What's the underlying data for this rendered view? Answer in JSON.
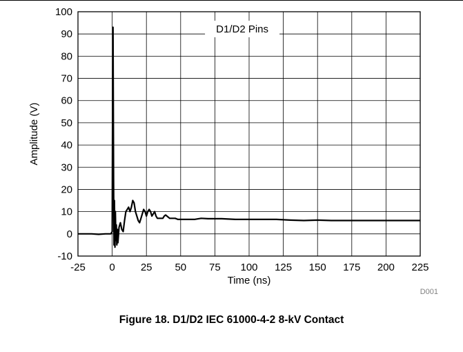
{
  "caption": "Figure 18. D1/D2 IEC 61000-4-2 8-kV Contact",
  "figure_code": "D001",
  "chart_data": {
    "type": "line",
    "title": "",
    "xlabel": "Time (ns)",
    "ylabel": "Amplitude (V)",
    "xlim": [
      -25,
      225
    ],
    "ylim": [
      -10,
      100
    ],
    "xticks": [
      -25,
      0,
      25,
      50,
      75,
      100,
      125,
      150,
      175,
      200,
      225
    ],
    "yticks": [
      -10,
      0,
      10,
      20,
      30,
      40,
      50,
      60,
      70,
      80,
      90,
      100
    ],
    "grid": true,
    "legend_position": "top-center",
    "series": [
      {
        "name": "D1/D2 Pins",
        "color": "#000000",
        "x": [
          -25,
          -20,
          -15,
          -10,
          -5,
          -1,
          0,
          0.3,
          0.6,
          1,
          1.3,
          1.6,
          2,
          2.3,
          2.7,
          3,
          3.4,
          3.8,
          4.2,
          5,
          6,
          7,
          8,
          9,
          10,
          11,
          12,
          13,
          14,
          15,
          16,
          17,
          18,
          19,
          20,
          21,
          22,
          23,
          24,
          25,
          26,
          27,
          28,
          29,
          30,
          31,
          32,
          33,
          34,
          35,
          36,
          37,
          38,
          39,
          40,
          42,
          44,
          46,
          48,
          50,
          55,
          60,
          65,
          70,
          80,
          90,
          100,
          110,
          120,
          130,
          140,
          150,
          160,
          170,
          180,
          190,
          200,
          210,
          220,
          225
        ],
        "y": [
          0,
          0,
          0,
          -0.2,
          0,
          0,
          1,
          60,
          93,
          25,
          -5,
          15,
          -6,
          10,
          -3,
          4,
          -5,
          2,
          -4,
          3,
          5,
          2,
          1,
          6,
          10,
          11,
          12,
          10,
          12,
          15,
          14,
          10,
          8,
          6,
          5,
          7,
          9,
          11,
          10,
          8,
          10,
          11,
          10,
          8,
          9,
          10,
          8,
          7,
          7,
          7,
          7,
          7,
          8,
          8.5,
          8,
          7,
          7,
          7,
          6.5,
          6.5,
          6.5,
          6.5,
          7,
          6.8,
          6.8,
          6.5,
          6.5,
          6.5,
          6.5,
          6.2,
          6,
          6.2,
          6,
          6,
          6,
          6,
          6,
          6,
          6,
          6
        ]
      }
    ]
  }
}
